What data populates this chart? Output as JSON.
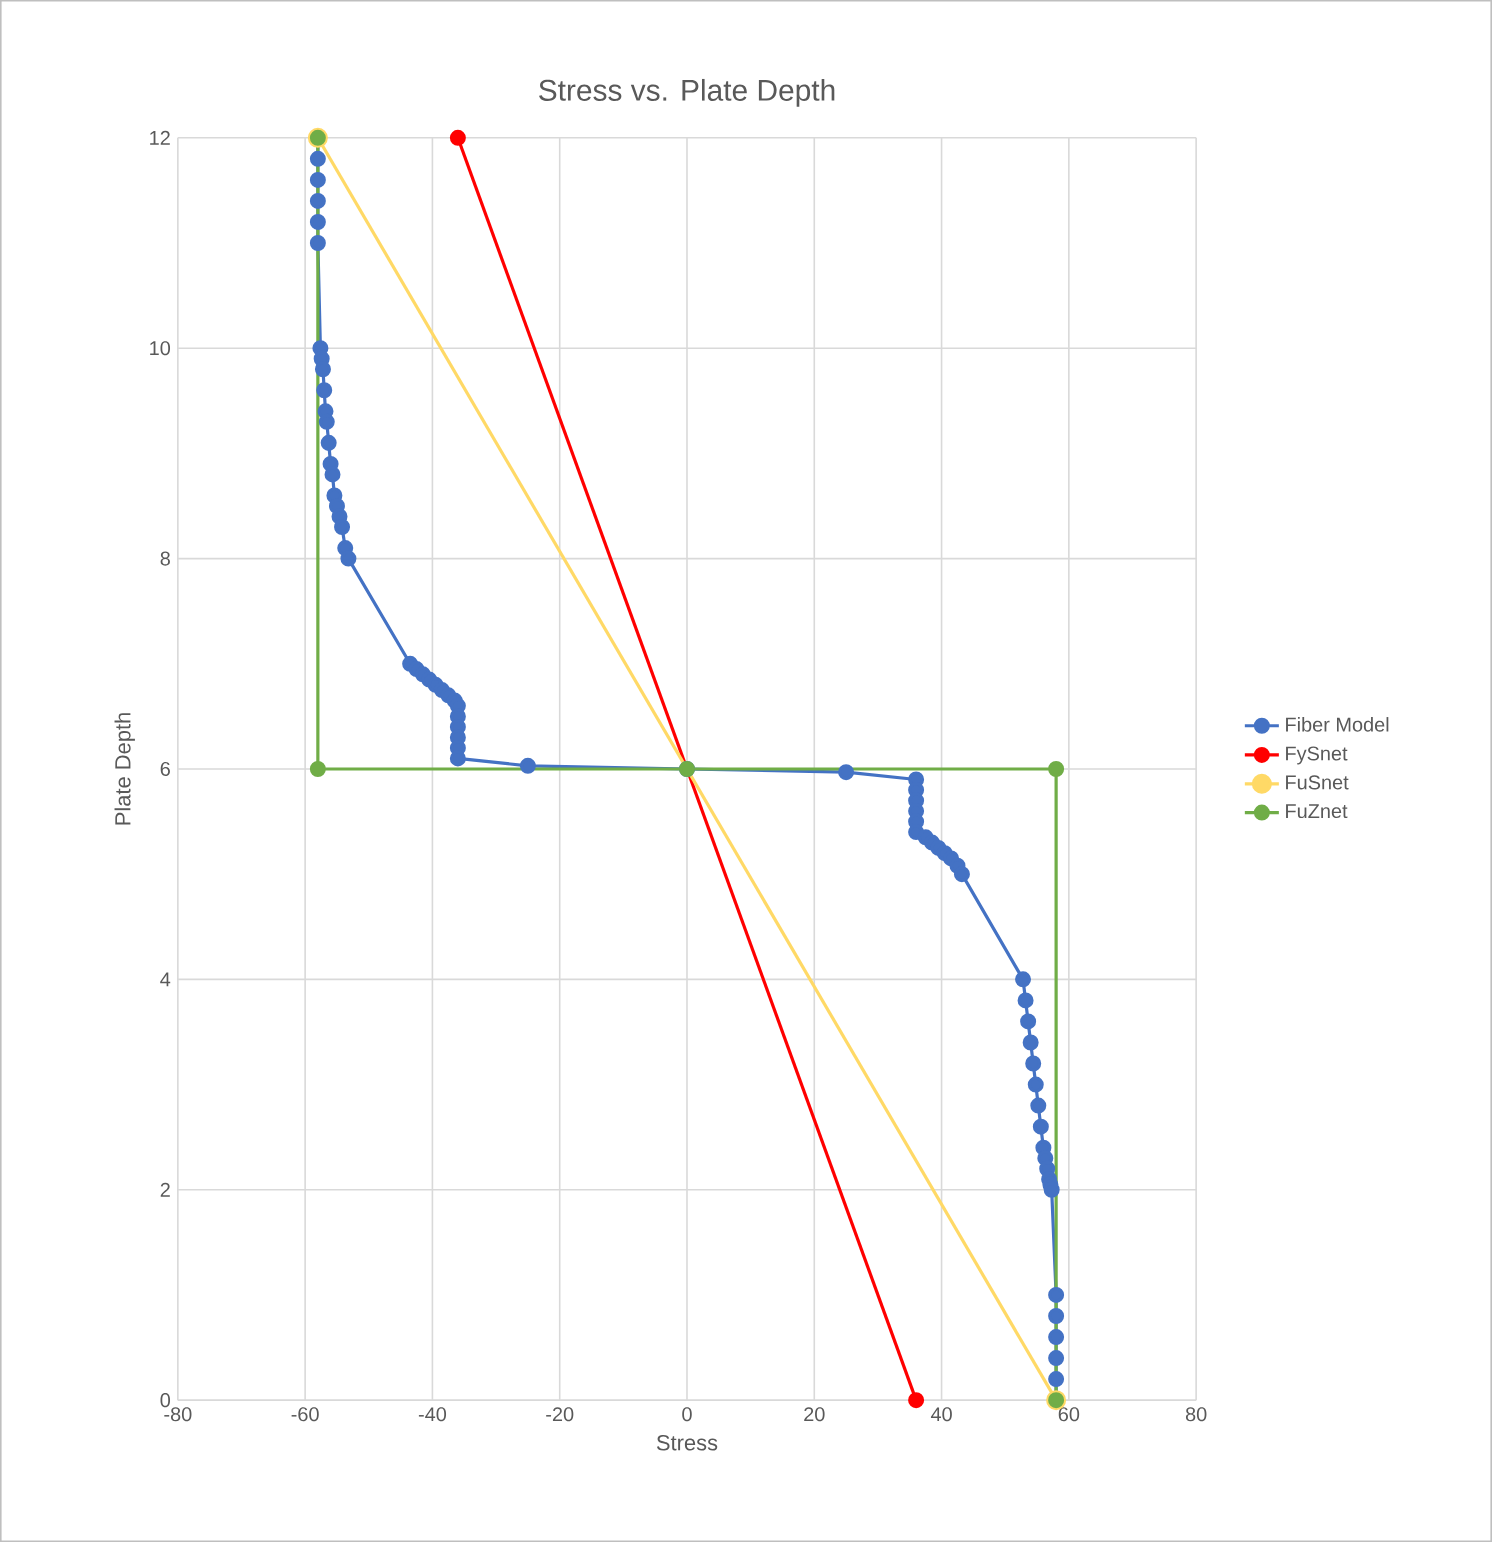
{
  "chart_data": {
    "type": "line",
    "title": "Stress vs. Plate Depth",
    "xlabel": "Stress",
    "ylabel": "Plate Depth",
    "xlim": [
      -80,
      80
    ],
    "xticks": [
      -80,
      -60,
      -40,
      -20,
      0,
      20,
      40,
      60,
      80
    ],
    "ylim": [
      0,
      12
    ],
    "yticks": [
      0,
      2,
      4,
      6,
      8,
      10,
      12
    ],
    "grid": true,
    "legend": "right",
    "marker": "circle",
    "line_style": "solid",
    "series": [
      {
        "name": "Fiber Model",
        "color": "#4472c4",
        "x": [
          -58,
          -58,
          -58,
          -58,
          -58,
          -58,
          -57.6,
          -57.4,
          -57.2,
          -57.0,
          -56.8,
          -56.6,
          -56.3,
          -56.0,
          -55.7,
          -55.4,
          -55.0,
          -54.6,
          -54.2,
          -53.7,
          -53.2,
          -43.5,
          -42.5,
          -41.5,
          -40.5,
          -39.5,
          -38.5,
          -37.5,
          -36.5,
          -36,
          -36,
          -36,
          -36,
          -36,
          -36,
          -25,
          0,
          25,
          36,
          36,
          36,
          36,
          36,
          36,
          37.5,
          38.5,
          39.5,
          40.5,
          41.5,
          42.5,
          43.2,
          52.8,
          53.2,
          53.6,
          54,
          54.4,
          54.8,
          55.2,
          55.6,
          56,
          56.3,
          56.6,
          56.9,
          57.1,
          57.3,
          58,
          58,
          58,
          58,
          58,
          58
        ],
        "values": [
          12,
          11.8,
          11.6,
          11.4,
          11.2,
          11.0,
          10,
          9.9,
          9.8,
          9.6,
          9.4,
          9.3,
          9.1,
          8.9,
          8.8,
          8.6,
          8.5,
          8.4,
          8.3,
          8.1,
          8.0,
          7.0,
          6.95,
          6.9,
          6.85,
          6.8,
          6.75,
          6.7,
          6.65,
          6.6,
          6.5,
          6.4,
          6.3,
          6.2,
          6.1,
          6.03,
          6.0,
          5.97,
          5.9,
          5.8,
          5.7,
          5.6,
          5.5,
          5.4,
          5.35,
          5.3,
          5.25,
          5.2,
          5.15,
          5.08,
          5.0,
          4.0,
          3.8,
          3.6,
          3.4,
          3.2,
          3.0,
          2.8,
          2.6,
          2.4,
          2.3,
          2.2,
          2.1,
          2.05,
          2.0,
          1.0,
          0.8,
          0.6,
          0.4,
          0.2,
          0.0
        ]
      },
      {
        "name": "FySnet",
        "color": "#ff0000",
        "x": [
          -36,
          36
        ],
        "values": [
          12,
          0
        ]
      },
      {
        "name": "FuSnet",
        "color": "#ffd966",
        "x": [
          -58,
          58
        ],
        "values": [
          12,
          0
        ]
      },
      {
        "name": "FuZnet",
        "color": "#70ad47",
        "x": [
          -58,
          -58,
          0,
          58,
          58
        ],
        "values": [
          12,
          6,
          6,
          6,
          0
        ]
      }
    ]
  }
}
